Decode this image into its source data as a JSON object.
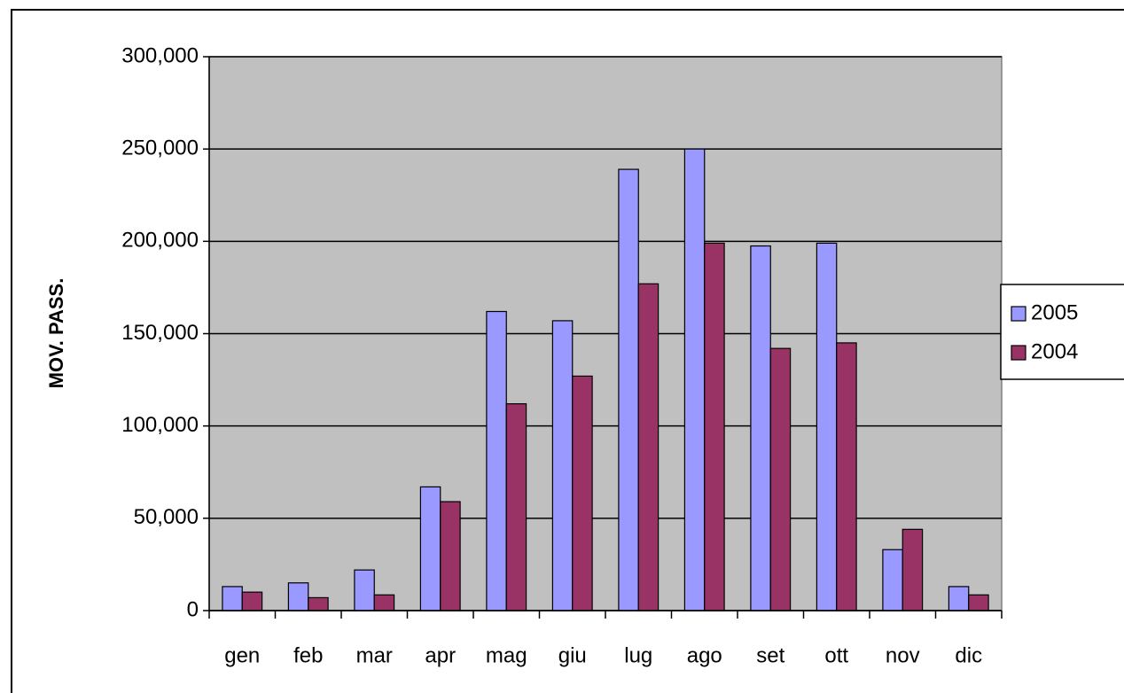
{
  "chart_data": {
    "type": "bar",
    "y_label": "MOV. PASS.",
    "categories": [
      "gen",
      "feb",
      "mar",
      "apr",
      "mag",
      "giu",
      "lug",
      "ago",
      "set",
      "ott",
      "nov",
      "dic"
    ],
    "series": [
      {
        "name": "2005",
        "color": "#9999ff",
        "values": [
          13000,
          15000,
          22000,
          67000,
          162000,
          157000,
          239000,
          250000,
          197500,
          199000,
          33000,
          13000
        ]
      },
      {
        "name": "2004",
        "color": "#993366",
        "values": [
          10000,
          7000,
          8500,
          59000,
          112000,
          127000,
          177000,
          199000,
          142000,
          145000,
          44000,
          8500
        ]
      }
    ],
    "ylim": [
      0,
      300000
    ],
    "yticks": [
      0,
      {
        "value": 50000,
        "label": "50,000"
      },
      {
        "value": 100000,
        "label": "100,000"
      },
      {
        "value": 150000,
        "label": "150,000"
      },
      {
        "value": 200000,
        "label": "200,000"
      },
      {
        "value": 250000,
        "label": "250,000"
      },
      {
        "value": 300000,
        "label": "300,000"
      }
    ],
    "grid": true,
    "legend": "right",
    "plot_background": "#c0c0c0"
  }
}
